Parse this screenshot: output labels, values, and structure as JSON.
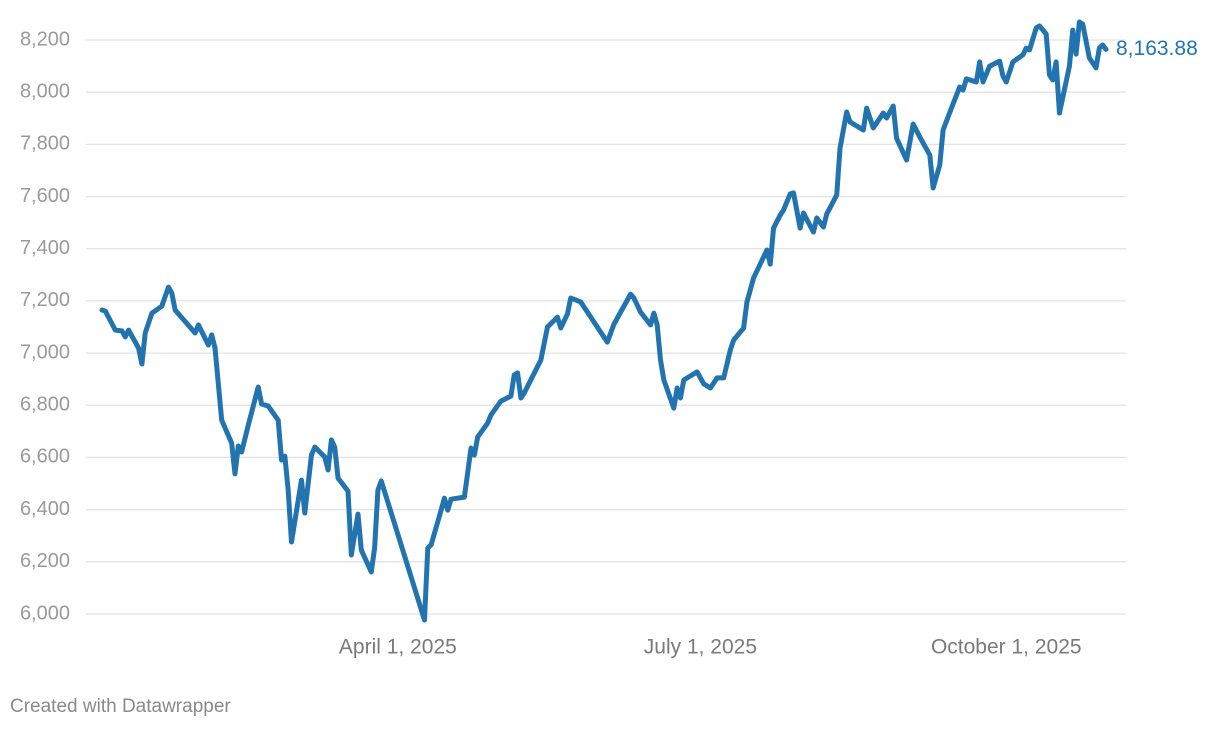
{
  "chart_data": {
    "type": "line",
    "credit": "Created with Datawrapper",
    "x": [
      "2025-01-02",
      "2025-01-03",
      "2025-01-06",
      "2025-01-08",
      "2025-01-09",
      "2025-01-10",
      "2025-01-13",
      "2025-01-14",
      "2025-01-15",
      "2025-01-17",
      "2025-01-20",
      "2025-01-22",
      "2025-01-23",
      "2025-01-24",
      "2025-01-30",
      "2025-01-31",
      "2025-02-03",
      "2025-02-04",
      "2025-02-05",
      "2025-02-07",
      "2025-02-10",
      "2025-02-11",
      "2025-02-12",
      "2025-02-13",
      "2025-02-15",
      "2025-02-18",
      "2025-02-19",
      "2025-02-21",
      "2025-02-24",
      "2025-02-25",
      "2025-02-26",
      "2025-02-27",
      "2025-02-28",
      "2025-03-03",
      "2025-03-04",
      "2025-03-06",
      "2025-03-07",
      "2025-03-10",
      "2025-03-11",
      "2025-03-12",
      "2025-03-13",
      "2025-03-14",
      "2025-03-17",
      "2025-03-18",
      "2025-03-20",
      "2025-03-21",
      "2025-03-24",
      "2025-03-25",
      "2025-03-26",
      "2025-03-27",
      "2025-04-09",
      "2025-04-10",
      "2025-04-11",
      "2025-04-14",
      "2025-04-15",
      "2025-04-16",
      "2025-04-17",
      "2025-04-21",
      "2025-04-23",
      "2025-04-24",
      "2025-04-25",
      "2025-04-28",
      "2025-04-29",
      "2025-05-02",
      "2025-05-05",
      "2025-05-06",
      "2025-05-07",
      "2025-05-08",
      "2025-05-09",
      "2025-05-14",
      "2025-05-16",
      "2025-05-19",
      "2025-05-20",
      "2025-05-22",
      "2025-05-23",
      "2025-05-26",
      "2025-06-03",
      "2025-06-05",
      "2025-06-10",
      "2025-06-11",
      "2025-06-13",
      "2025-06-16",
      "2025-06-17",
      "2025-06-18",
      "2025-06-19",
      "2025-06-20",
      "2025-06-23",
      "2025-06-24",
      "2025-06-25",
      "2025-06-26",
      "2025-06-30",
      "2025-07-02",
      "2025-07-04",
      "2025-07-06",
      "2025-07-08",
      "2025-07-10",
      "2025-07-11",
      "2025-07-14",
      "2025-07-15",
      "2025-07-17",
      "2025-07-21",
      "2025-07-22",
      "2025-07-23",
      "2025-07-25",
      "2025-07-26",
      "2025-07-28",
      "2025-07-29",
      "2025-07-31",
      "2025-08-01",
      "2025-08-04",
      "2025-08-05",
      "2025-08-07",
      "2025-08-08",
      "2025-08-11",
      "2025-08-12",
      "2025-08-14",
      "2025-08-15",
      "2025-08-19",
      "2025-08-20",
      "2025-08-22",
      "2025-08-25",
      "2025-08-26",
      "2025-08-28",
      "2025-08-29",
      "2025-09-01",
      "2025-09-03",
      "2025-09-05",
      "2025-09-08",
      "2025-09-09",
      "2025-09-11",
      "2025-09-12",
      "2025-09-15",
      "2025-09-17",
      "2025-09-18",
      "2025-09-19",
      "2025-09-22",
      "2025-09-23",
      "2025-09-24",
      "2025-09-26",
      "2025-09-29",
      "2025-09-30",
      "2025-10-01",
      "2025-10-03",
      "2025-10-06",
      "2025-10-07",
      "2025-10-08",
      "2025-10-10",
      "2025-10-11",
      "2025-10-13",
      "2025-10-14",
      "2025-10-15",
      "2025-10-16",
      "2025-10-17",
      "2025-10-20",
      "2025-10-21",
      "2025-10-22",
      "2025-10-23",
      "2025-10-24",
      "2025-10-26",
      "2025-10-28",
      "2025-10-29",
      "2025-10-30",
      "2025-10-31"
    ],
    "series": [
      {
        "color": "#2274b0",
        "end_label": "8,163.88",
        "values": [
          7165,
          7161,
          7088,
          7085,
          7062,
          7088,
          7019,
          6958,
          7077,
          7153,
          7180,
          7253,
          7230,
          7165,
          7077,
          7108,
          7031,
          7070,
          7019,
          6743,
          6655,
          6537,
          6644,
          6621,
          6724,
          6870,
          6805,
          6797,
          6743,
          6590,
          6605,
          6475,
          6276,
          6513,
          6387,
          6609,
          6640,
          6602,
          6552,
          6667,
          6640,
          6521,
          6471,
          6226,
          6383,
          6245,
          6161,
          6253,
          6475,
          6510,
          5977,
          6253,
          6265,
          6398,
          6444,
          6398,
          6440,
          6448,
          6636,
          6609,
          6678,
          6732,
          6763,
          6816,
          6835,
          6916,
          6924,
          6828,
          6847,
          6973,
          7100,
          7138,
          7096,
          7150,
          7211,
          7196,
          7042,
          7111,
          7226,
          7211,
          7157,
          7108,
          7153,
          7108,
          6973,
          6897,
          6789,
          6866,
          6828,
          6897,
          6928,
          6882,
          6866,
          6905,
          6905,
          7012,
          7050,
          7096,
          7196,
          7288,
          7395,
          7341,
          7479,
          7529,
          7548,
          7610,
          7614,
          7479,
          7537,
          7464,
          7518,
          7483,
          7533,
          7606,
          7786,
          7924,
          7886,
          7855,
          7939,
          7863,
          7920,
          7901,
          7947,
          7824,
          7740,
          7878,
          7828,
          7759,
          7633,
          7721,
          7855,
          7955,
          8020,
          8008,
          8051,
          8039,
          8116,
          8039,
          8100,
          8119,
          8062,
          8039,
          8116,
          8143,
          8169,
          8162,
          8246,
          8254,
          8223,
          8066,
          8047,
          8116,
          7920,
          8100,
          8238,
          8146,
          8269,
          8261,
          8131,
          8093,
          8169,
          8181,
          8163.88
        ]
      }
    ],
    "xlim": [
      "2025-01-02",
      "2025-10-31"
    ],
    "xticks": [
      {
        "value": "2025-04-01",
        "label": "April 1, 2025"
      },
      {
        "value": "2025-07-01",
        "label": "July 1, 2025"
      },
      {
        "value": "2025-10-01",
        "label": "October 1, 2025"
      }
    ],
    "ylim": [
      6000,
      8200
    ],
    "yticks": [
      {
        "value": 6000,
        "label": "6,000"
      },
      {
        "value": 6200,
        "label": "6,200"
      },
      {
        "value": 6400,
        "label": "6,400"
      },
      {
        "value": 6600,
        "label": "6,600"
      },
      {
        "value": 6800,
        "label": "6,800"
      },
      {
        "value": 7000,
        "label": "7,000"
      },
      {
        "value": 7200,
        "label": "7,200"
      },
      {
        "value": 7400,
        "label": "7,400"
      },
      {
        "value": 7600,
        "label": "7,600"
      },
      {
        "value": 7800,
        "label": "7,800"
      },
      {
        "value": 8000,
        "label": "8,000"
      },
      {
        "value": 8200,
        "label": "8,200"
      }
    ],
    "grid": true
  }
}
